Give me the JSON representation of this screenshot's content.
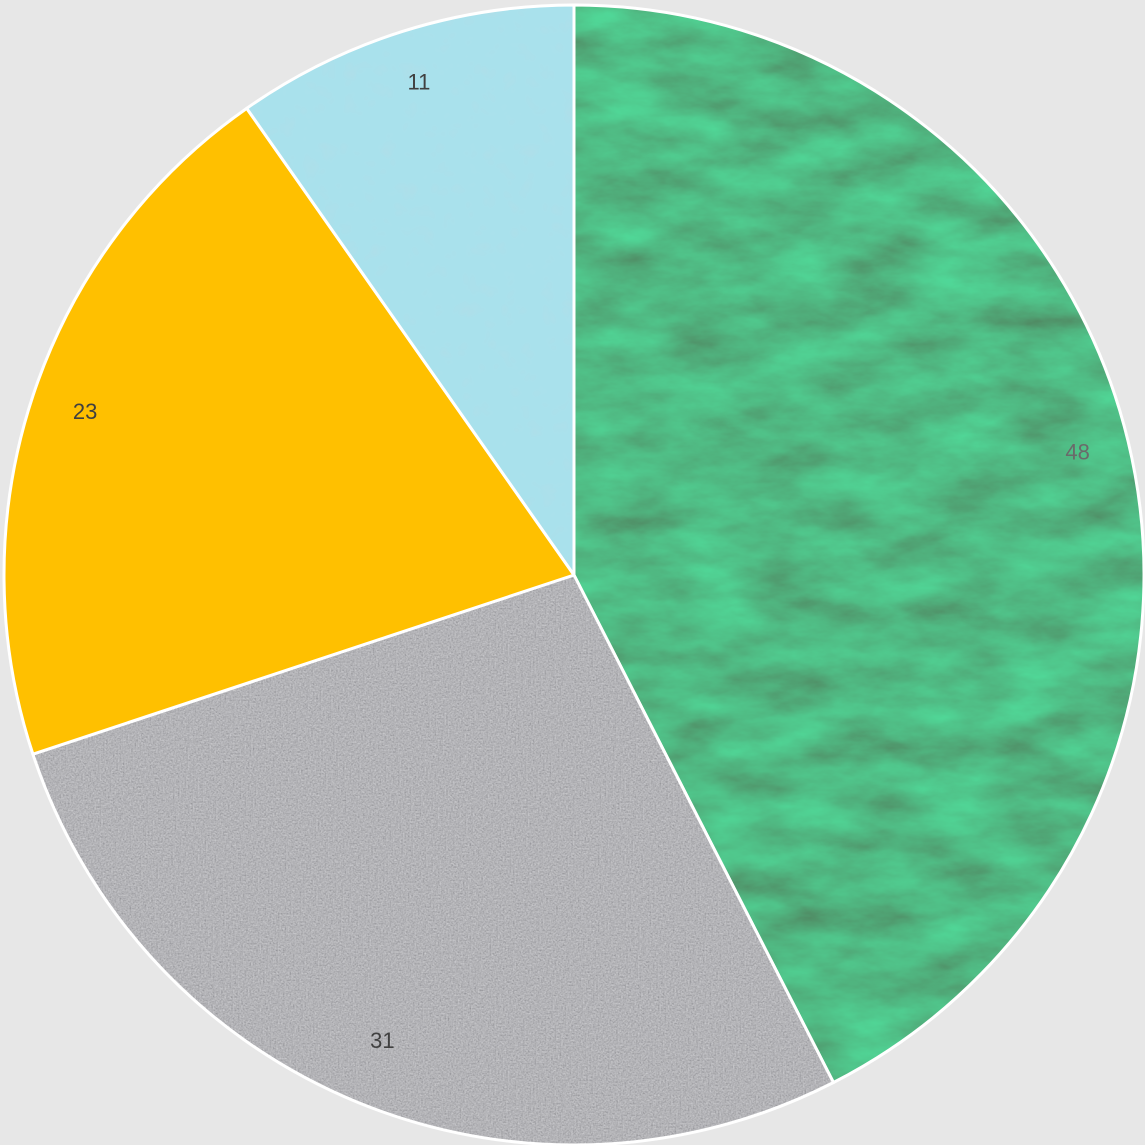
{
  "chart_data": {
    "type": "pie",
    "start_angle_deg": 0,
    "direction": "clockwise",
    "slices": [
      {
        "label": "48",
        "value": 48,
        "fill": "#1d5a34",
        "texture": "green-marble",
        "label_color": "#6a6a6a"
      },
      {
        "label": "31",
        "value": 31,
        "fill": "#a9a9ad",
        "texture": "granite",
        "label_color": "#404040"
      },
      {
        "label": "23",
        "value": 23,
        "fill": "#ffc000",
        "texture": "solid",
        "label_color": "#404040"
      },
      {
        "label": "11",
        "value": 11,
        "fill": "#a9e1ec",
        "texture": "water-droplets",
        "label_color": "#404040"
      }
    ],
    "legend": "none",
    "border_color": "#ffffff",
    "background": "#e7e7e7"
  }
}
